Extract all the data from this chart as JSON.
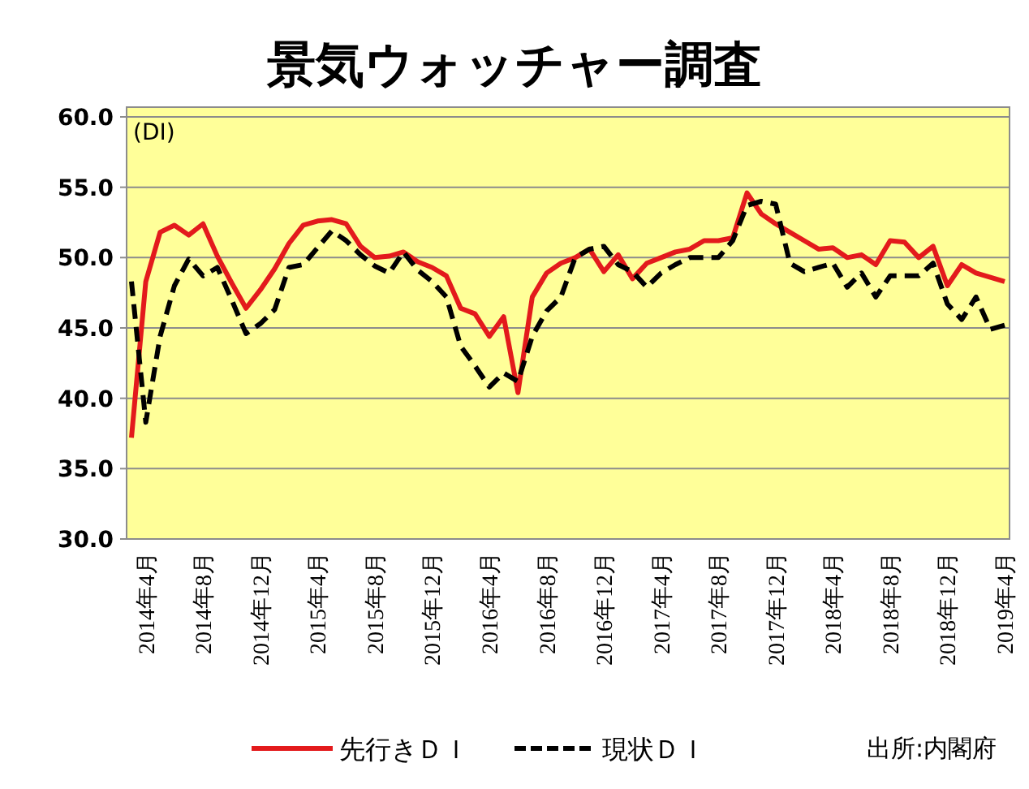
{
  "chart_data": {
    "type": "line",
    "title": "景気ウォッチャー調査",
    "ylabel": "(DI)",
    "annotations": [
      "出所:内閣府"
    ],
    "categories": [
      null,
      "2014年4月",
      null,
      null,
      null,
      "2014年8月",
      null,
      null,
      null,
      "2014年12月",
      null,
      null,
      null,
      "2015年4月",
      null,
      null,
      null,
      "2015年8月",
      null,
      null,
      null,
      "2015年12月",
      null,
      null,
      null,
      "2016年4月",
      null,
      null,
      null,
      "2016年8月",
      null,
      null,
      null,
      "2016年12月",
      null,
      null,
      null,
      "2017年4月",
      null,
      null,
      null,
      "2017年8月",
      null,
      null,
      null,
      "2017年12月",
      null,
      null,
      null,
      "2018年4月",
      null,
      null,
      null,
      "2018年8月",
      null,
      null,
      null,
      "2018年12月",
      null,
      null,
      null,
      "2019年4月"
    ],
    "series": [
      {
        "name": "先行きＤＩ",
        "color": "#e31a1c",
        "line_style": "solid",
        "values": [
          37.2,
          48.3,
          51.8,
          52.3,
          51.6,
          52.4,
          50.1,
          48.2,
          46.4,
          47.7,
          49.2,
          51.0,
          52.3,
          52.6,
          52.7,
          52.4,
          50.8,
          50.0,
          50.1,
          50.4,
          49.7,
          49.3,
          48.7,
          46.4,
          46.0,
          44.4,
          45.8,
          40.4,
          47.2,
          48.9,
          49.6,
          50.0,
          50.6,
          49.0,
          50.2,
          48.5,
          49.6,
          50.0,
          50.4,
          50.6,
          51.2,
          51.2,
          51.4,
          54.6,
          53.1,
          52.4,
          51.8,
          51.2,
          50.6,
          50.7,
          50.0,
          50.2,
          49.5,
          51.2,
          51.1,
          50.0,
          50.8,
          48.0,
          49.5,
          48.9,
          48.6,
          48.3
        ]
      },
      {
        "name": "現状ＤＩ",
        "color": "#000000",
        "line_style": "dashed",
        "values": [
          48.3,
          38.3,
          44.4,
          48.0,
          49.9,
          48.7,
          49.3,
          47.0,
          44.6,
          45.3,
          46.3,
          49.3,
          49.5,
          50.7,
          51.9,
          51.2,
          50.2,
          49.4,
          48.9,
          50.4,
          49.1,
          48.3,
          47.2,
          43.7,
          42.3,
          40.8,
          41.8,
          41.2,
          44.4,
          46.2,
          47.2,
          50.0,
          50.6,
          50.8,
          49.5,
          49.0,
          47.9,
          48.9,
          49.5,
          50.0,
          50.0,
          50.0,
          51.2,
          53.7,
          54.0,
          53.8,
          49.6,
          49.0,
          49.3,
          49.6,
          47.9,
          48.9,
          47.2,
          48.7,
          48.7,
          48.7,
          49.6,
          46.7,
          45.6,
          47.2,
          44.9,
          45.2
        ]
      }
    ],
    "ylim": [
      30,
      60
    ],
    "yticks": [
      {
        "value": 30,
        "label": "30.0"
      },
      {
        "value": 35,
        "label": "35.0"
      },
      {
        "value": 40,
        "label": "40.0"
      },
      {
        "value": 45,
        "label": "45.0"
      },
      {
        "value": 50,
        "label": "50.0"
      },
      {
        "value": 55,
        "label": "55.0"
      },
      {
        "value": 60,
        "label": "60.0"
      }
    ],
    "grid": "y",
    "legend": "bottom"
  }
}
